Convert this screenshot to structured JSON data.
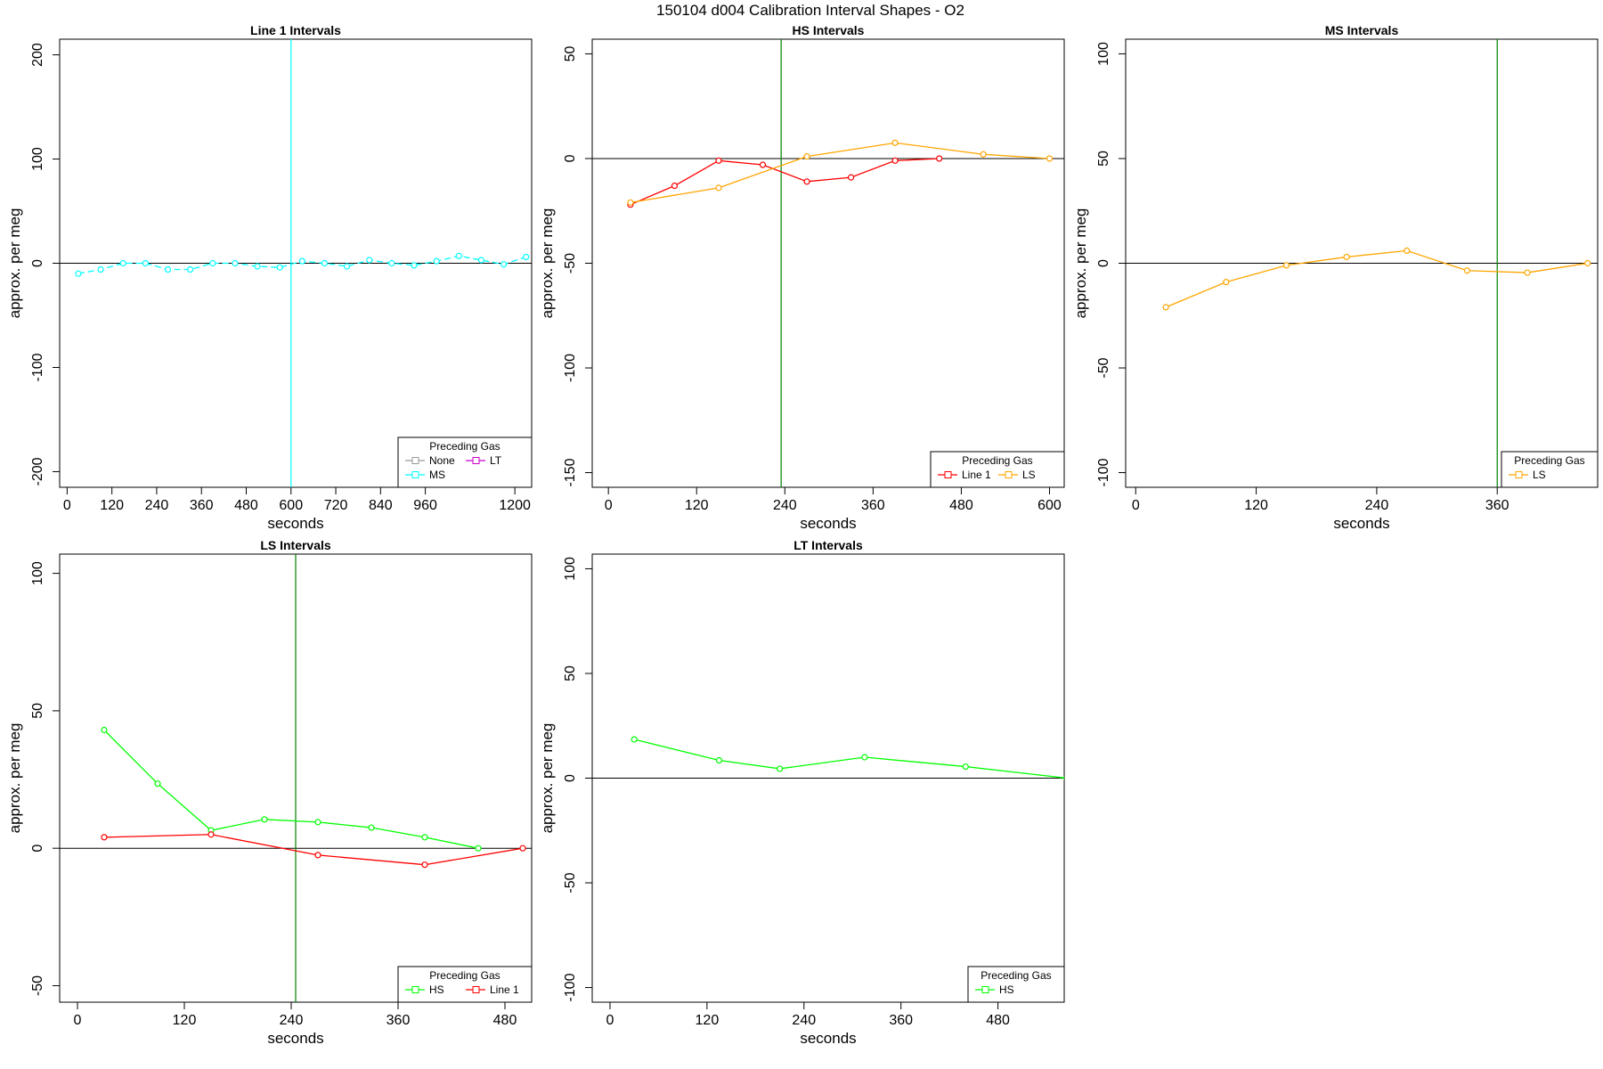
{
  "figure_title": "150104   d004   Calibration Interval Shapes - O2",
  "chart_data": [
    {
      "type": "line",
      "title": "Line 1 Intervals",
      "xlabel": "seconds",
      "ylabel": "approx. per meg",
      "xlim": [
        -20,
        1245
      ],
      "ylim": [
        -215,
        215
      ],
      "xticks": [
        0,
        120,
        240,
        360,
        480,
        600,
        720,
        840,
        960,
        1200
      ],
      "xtick_labels": [
        "0",
        "120",
        "240",
        "360",
        "480",
        "600",
        "720",
        "840",
        "960",
        "1200"
      ],
      "yticks": [
        -200,
        -100,
        0,
        100,
        200
      ],
      "ytick_labels": [
        "-200",
        "-100",
        "0",
        "100",
        "200"
      ],
      "hline": 0,
      "vline": {
        "x": 600,
        "color": "#00FFFF"
      },
      "legend": {
        "title": "Preceding Gas",
        "placement": "bottom-right",
        "items": [
          {
            "name": "None",
            "color": "#999999"
          },
          {
            "name": "LT",
            "color": "#CC00CC"
          },
          {
            "name": "MS",
            "color": "#00FFFF"
          }
        ]
      },
      "series": [
        {
          "color": "#00FFFF",
          "dash": true,
          "x": [
            30,
            90,
            150,
            210,
            270,
            330,
            390,
            450,
            510,
            570,
            630,
            690,
            750,
            810,
            870,
            930,
            990,
            1050,
            1110,
            1170,
            1230
          ],
          "y": [
            -10,
            -6,
            0,
            0,
            -6,
            -6,
            0,
            0,
            -3,
            -4,
            2,
            0,
            -3,
            3,
            0,
            -2,
            2,
            7,
            3,
            -1,
            6
          ]
        }
      ]
    },
    {
      "type": "line",
      "title": "HS Intervals",
      "xlabel": "seconds",
      "ylabel": "approx. per meg",
      "xlim": [
        -22,
        620
      ],
      "ylim": [
        -157,
        57
      ],
      "xticks": [
        0,
        120,
        240,
        360,
        480,
        600
      ],
      "xtick_labels": [
        "0",
        "120",
        "240",
        "360",
        "480",
        "600"
      ],
      "yticks": [
        -150,
        -100,
        -50,
        0,
        50
      ],
      "ytick_labels": [
        "-150",
        "-100",
        "-50",
        "0",
        "50"
      ],
      "hline": 0,
      "vline": {
        "x": 235,
        "color": "#008000"
      },
      "legend": {
        "title": "Preceding Gas",
        "placement": "bottom-right",
        "items": [
          {
            "name": "Line 1",
            "color": "#FF0000"
          },
          {
            "name": "LS",
            "color": "#FFA500"
          }
        ]
      },
      "series": [
        {
          "name": "Line 1",
          "color": "#FF0000",
          "x": [
            30,
            90,
            150,
            210,
            270,
            330,
            390,
            450
          ],
          "y": [
            -22,
            -13,
            -1,
            -3,
            -11,
            -9,
            -1,
            0
          ]
        },
        {
          "name": "LS",
          "color": "#FFA500",
          "x": [
            30,
            150,
            270,
            390,
            510,
            600
          ],
          "y": [
            -21,
            -14,
            1,
            7.5,
            2,
            0
          ]
        }
      ]
    },
    {
      "type": "line",
      "title": "MS Intervals",
      "xlabel": "seconds",
      "ylabel": "approx. per meg",
      "xlim": [
        -10,
        460
      ],
      "ylim": [
        -107,
        107
      ],
      "xticks": [
        0,
        120,
        240,
        360
      ],
      "xtick_labels": [
        "0",
        "120",
        "240",
        "360"
      ],
      "yticks": [
        -100,
        -50,
        0,
        50,
        100
      ],
      "ytick_labels": [
        "-100",
        "-50",
        "0",
        "50",
        "100"
      ],
      "hline": 0,
      "vline": {
        "x": 360,
        "color": "#008000"
      },
      "legend": {
        "title": "Preceding Gas",
        "placement": "bottom-right",
        "items": [
          {
            "name": "LS",
            "color": "#FFA500"
          }
        ]
      },
      "series": [
        {
          "name": "LS",
          "color": "#FFA500",
          "x": [
            30,
            90,
            150,
            210,
            270,
            330,
            390,
            450
          ],
          "y": [
            -21,
            -9,
            -1,
            3,
            6,
            -3.5,
            -4.5,
            0
          ]
        }
      ]
    },
    {
      "type": "line",
      "title": "LS Intervals",
      "xlabel": "seconds",
      "ylabel": "approx. per meg",
      "xlim": [
        -20,
        510
      ],
      "ylim": [
        -56,
        107
      ],
      "xticks": [
        0,
        120,
        240,
        360,
        480
      ],
      "xtick_labels": [
        "0",
        "120",
        "240",
        "360",
        "480"
      ],
      "yticks": [
        -50,
        0,
        50,
        100
      ],
      "ytick_labels": [
        "-50",
        "0",
        "50",
        "100"
      ],
      "hline": 0,
      "vline": {
        "x": 245,
        "color": "#008000"
      },
      "legend": {
        "title": "Preceding Gas",
        "placement": "bottom-right",
        "items": [
          {
            "name": "HS",
            "color": "#00FF00"
          },
          {
            "name": "Line 1",
            "color": "#FF0000"
          }
        ]
      },
      "series": [
        {
          "name": "HS",
          "color": "#00FF00",
          "x": [
            30,
            90,
            150,
            210,
            270,
            330,
            390,
            450
          ],
          "y": [
            43,
            23.5,
            6.5,
            10.5,
            9.5,
            7.5,
            4,
            0
          ]
        },
        {
          "name": "Line 1",
          "color": "#FF0000",
          "x": [
            30,
            150,
            270,
            390,
            500
          ],
          "y": [
            4,
            5,
            -2.5,
            -6,
            0
          ]
        }
      ]
    },
    {
      "type": "line",
      "title": "LT Intervals",
      "xlabel": "seconds",
      "ylabel": "approx. per meg",
      "xlim": [
        -22,
        562
      ],
      "ylim": [
        -107,
        107
      ],
      "xticks": [
        0,
        120,
        240,
        360,
        480
      ],
      "xtick_labels": [
        "0",
        "120",
        "240",
        "360",
        "480"
      ],
      "yticks": [
        -100,
        -50,
        0,
        50,
        100
      ],
      "ytick_labels": [
        "-100",
        "-50",
        "0",
        "50",
        "100"
      ],
      "hline": 0,
      "vline": null,
      "legend": {
        "title": "Preceding Gas",
        "placement": "bottom-right",
        "items": [
          {
            "name": "HS",
            "color": "#00FF00"
          }
        ]
      },
      "series": [
        {
          "name": "HS",
          "color": "#00FF00",
          "x": [
            30,
            135,
            210,
            315,
            440,
            565
          ],
          "y": [
            18.5,
            8.5,
            4.5,
            10,
            5.5,
            0
          ]
        }
      ]
    }
  ]
}
